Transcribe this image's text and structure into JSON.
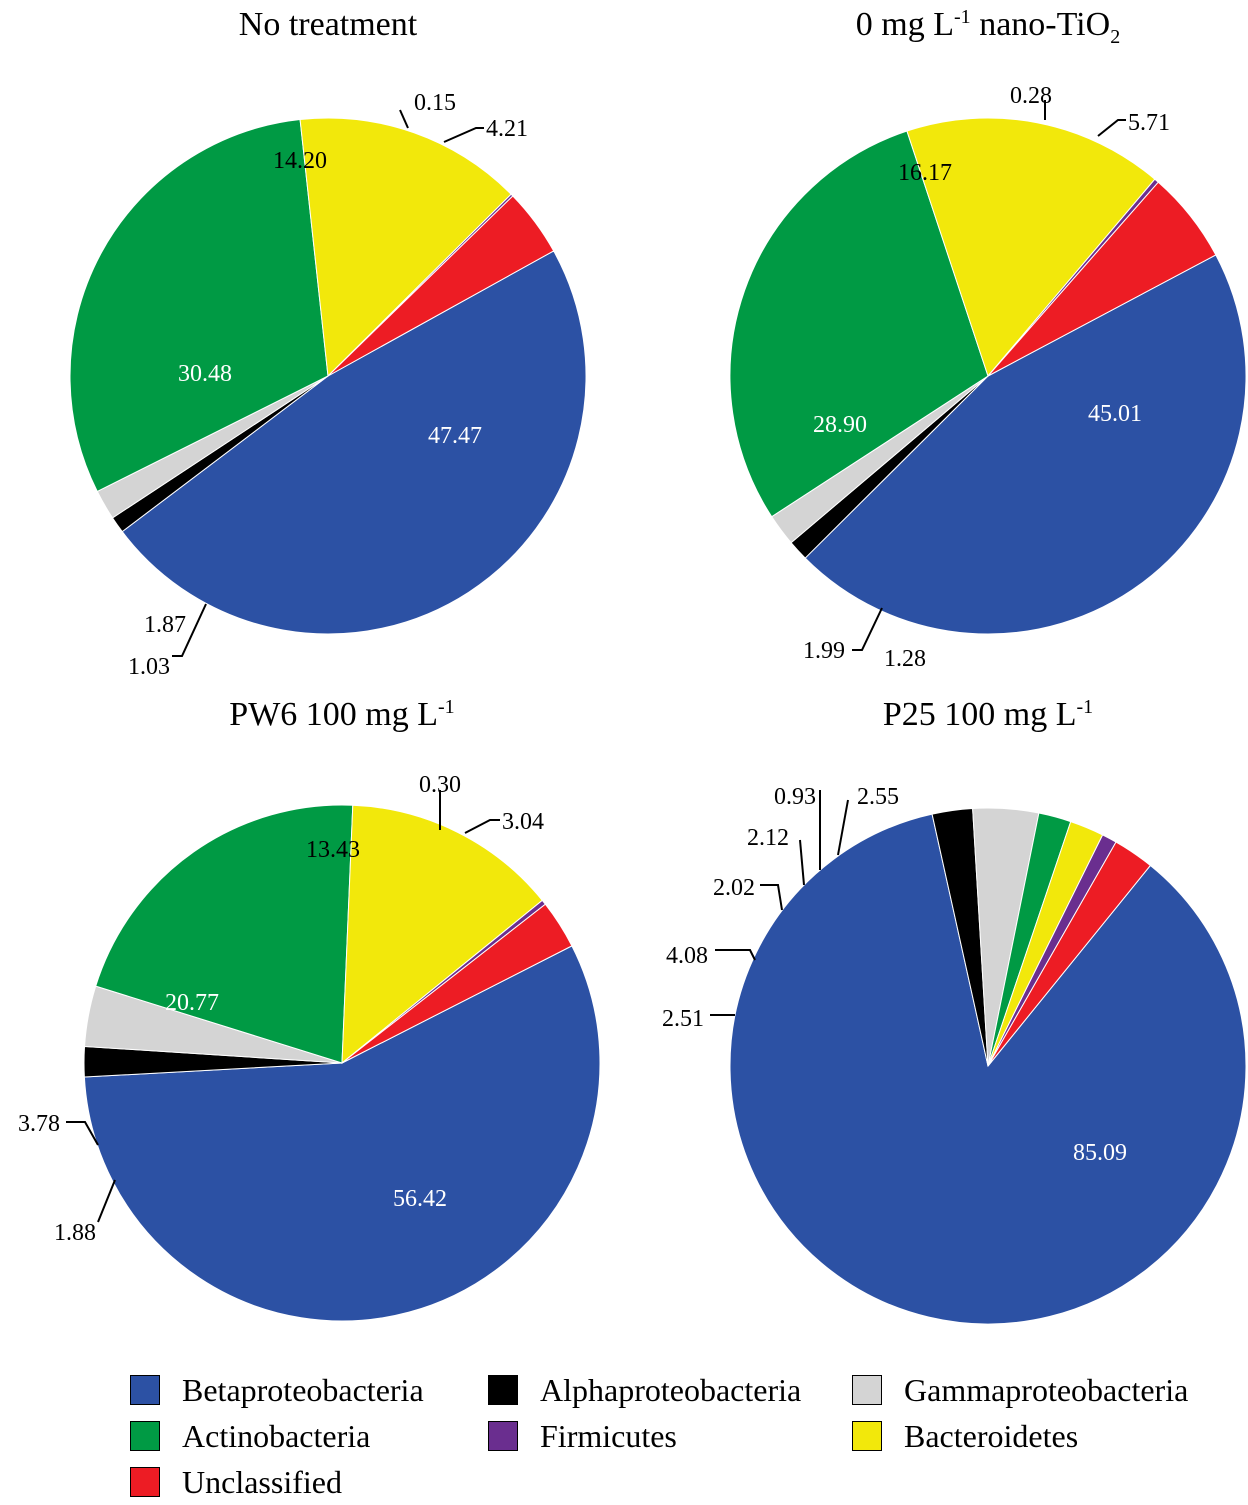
{
  "colors": {
    "Betaproteobacteria": "#2c51a4",
    "Alphaproteobacteria": "#000000",
    "Gammaproteobacteria": "#d4d4d4",
    "Actinobacteria": "#009a44",
    "Firmicutes": "#6a2e8f",
    "Bacteroidetes": "#f2e80b",
    "Unclassified": "#ed1c24"
  },
  "legend": {
    "items": [
      {
        "key": "Betaproteobacteria",
        "label": "Betaproteobacteria"
      },
      {
        "key": "Alphaproteobacteria",
        "label": "Alphaproteobacteria"
      },
      {
        "key": "Gammaproteobacteria",
        "label": "Gammaproteobacteria"
      },
      {
        "key": "Actinobacteria",
        "label": "Actinobacteria"
      },
      {
        "key": "Firmicutes",
        "label": "Firmicutes"
      },
      {
        "key": "Bacteroidetes",
        "label": "Bacteroidetes"
      },
      {
        "key": "Unclassified",
        "label": "Unclassified"
      }
    ]
  },
  "chart_data": [
    {
      "type": "pie",
      "title": "No treatment",
      "slices": [
        {
          "category": "Betaproteobacteria",
          "value": 47.47,
          "label": "47.47"
        },
        {
          "category": "Alphaproteobacteria",
          "value": 1.03,
          "label": "1.03"
        },
        {
          "category": "Gammaproteobacteria",
          "value": 1.87,
          "label": "1.87"
        },
        {
          "category": "Actinobacteria",
          "value": 30.48,
          "label": "30.48"
        },
        {
          "category": "Bacteroidetes",
          "value": 14.2,
          "label": "14.20"
        },
        {
          "category": "Firmicutes",
          "value": 0.15,
          "label": "0.15"
        },
        {
          "category": "Unclassified",
          "value": 4.21,
          "label": "4.21"
        }
      ]
    },
    {
      "type": "pie",
      "title": "0 mg L",
      "title_sup": "-1",
      "title_rest": " nano-TiO",
      "title_sub": "2",
      "slices": [
        {
          "category": "Betaproteobacteria",
          "value": 45.01,
          "label": "45.01"
        },
        {
          "category": "Alphaproteobacteria",
          "value": 1.28,
          "label": "1.28"
        },
        {
          "category": "Gammaproteobacteria",
          "value": 1.99,
          "label": "1.99"
        },
        {
          "category": "Actinobacteria",
          "value": 28.9,
          "label": "28.90"
        },
        {
          "category": "Bacteroidetes",
          "value": 16.17,
          "label": "16.17"
        },
        {
          "category": "Firmicutes",
          "value": 0.28,
          "label": "0.28"
        },
        {
          "category": "Unclassified",
          "value": 5.71,
          "label": "5.71"
        }
      ]
    },
    {
      "type": "pie",
      "title": "PW6 100 mg L",
      "title_sup": "-1",
      "slices": [
        {
          "category": "Betaproteobacteria",
          "value": 56.42,
          "label": "56.42"
        },
        {
          "category": "Alphaproteobacteria",
          "value": 1.88,
          "label": "1.88"
        },
        {
          "category": "Gammaproteobacteria",
          "value": 3.78,
          "label": "3.78"
        },
        {
          "category": "Actinobacteria",
          "value": 20.77,
          "label": "20.77"
        },
        {
          "category": "Bacteroidetes",
          "value": 13.43,
          "label": "13.43"
        },
        {
          "category": "Firmicutes",
          "value": 0.3,
          "label": "0.30"
        },
        {
          "category": "Unclassified",
          "value": 3.04,
          "label": "3.04"
        }
      ]
    },
    {
      "type": "pie",
      "title": "P25 100 mg L",
      "title_sup": "-1",
      "slices": [
        {
          "category": "Betaproteobacteria",
          "value": 85.09,
          "label": "85.09"
        },
        {
          "category": "Alphaproteobacteria",
          "value": 2.51,
          "label": "2.51"
        },
        {
          "category": "Gammaproteobacteria",
          "value": 4.08,
          "label": "4.08"
        },
        {
          "category": "Actinobacteria",
          "value": 2.02,
          "label": "2.02"
        },
        {
          "category": "Bacteroidetes",
          "value": 2.12,
          "label": "2.12"
        },
        {
          "category": "Firmicutes",
          "value": 0.93,
          "label": "0.93"
        },
        {
          "category": "Unclassified",
          "value": 2.55,
          "label": "2.55"
        }
      ]
    }
  ]
}
